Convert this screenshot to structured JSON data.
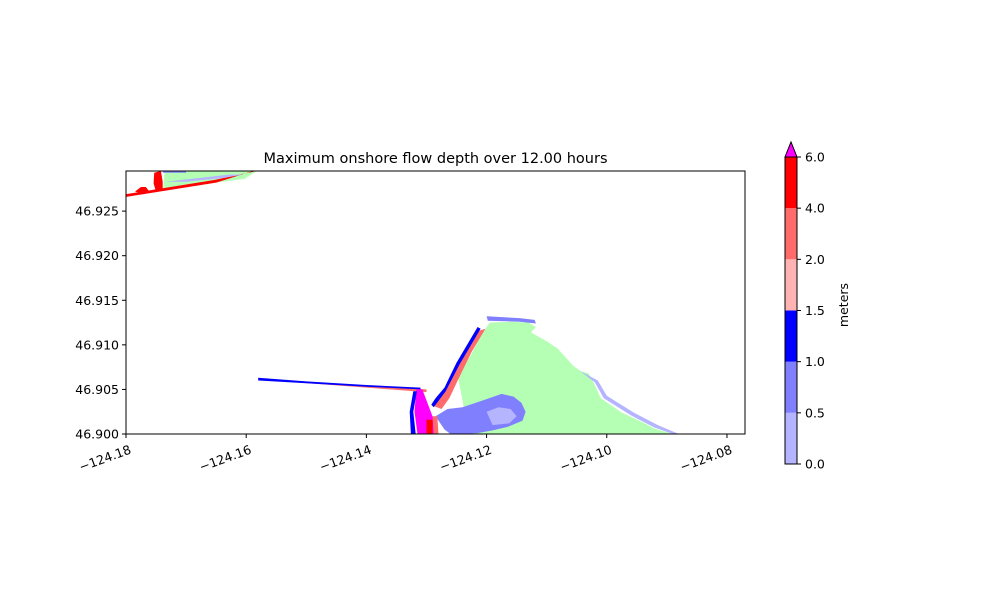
{
  "chart_data": {
    "type": "heatmap",
    "title": "Maximum onshore flow depth over 12.00 hours",
    "xlabel": "",
    "ylabel": "",
    "xlim": [
      -124.18,
      -124.077
    ],
    "ylim": [
      46.9,
      46.9295
    ],
    "x_ticks": [
      "−124.18",
      "−124.16",
      "−124.14",
      "−124.12",
      "−124.10",
      "−124.08"
    ],
    "x_tick_values": [
      -124.18,
      -124.16,
      -124.14,
      -124.12,
      -124.1,
      -124.08
    ],
    "y_ticks": [
      "46.900",
      "46.905",
      "46.910",
      "46.915",
      "46.920",
      "46.925"
    ],
    "y_tick_values": [
      46.9,
      46.905,
      46.91,
      46.915,
      46.92,
      46.925
    ],
    "grid": false,
    "colorbar": {
      "label": "meters",
      "levels": [
        0.0,
        0.5,
        1.0,
        1.5,
        2.0,
        4.0,
        6.0
      ],
      "tick_labels": [
        "0.0",
        "0.5",
        "1.0",
        "1.5",
        "2.0",
        "4.0",
        "6.0"
      ],
      "colors": [
        "#b4b4ff",
        "#8080ff",
        "#0000ff",
        "#ffb4b4",
        "#ff6a6a",
        "#ff0000"
      ],
      "over_color": "#ff00ff",
      "extend": "max"
    },
    "land_color": "#b4ffb4",
    "regions": [
      {
        "name": "north-beach-land",
        "fill": "#b4ffb4",
        "points": [
          [
            -124.1738,
            46.9275
          ],
          [
            -124.1736,
            46.9295
          ],
          [
            -124.1582,
            46.9295
          ],
          [
            -124.1603,
            46.9286
          ],
          [
            -124.1675,
            46.928
          ],
          [
            -124.1712,
            46.9278
          ]
        ]
      },
      {
        "name": "north-shoreline",
        "fill": "#ff0000",
        "points": [
          [
            -124.18,
            46.9266
          ],
          [
            -124.165,
            46.9282
          ],
          [
            -124.1584,
            46.9296
          ],
          [
            -124.1575,
            46.9296
          ],
          [
            -124.1652,
            46.9285
          ],
          [
            -124.18,
            46.9269
          ]
        ]
      },
      {
        "name": "north-red-plume",
        "fill": "#ff0000",
        "points": [
          [
            -124.175,
            46.9272
          ],
          [
            -124.1754,
            46.9281
          ],
          [
            -124.1753,
            46.9293
          ],
          [
            -124.1742,
            46.9295
          ],
          [
            -124.1739,
            46.9283
          ],
          [
            -124.1739,
            46.9274
          ]
        ]
      },
      {
        "name": "north-red-blob",
        "fill": "#ff0000",
        "points": [
          [
            -124.1785,
            46.9272
          ],
          [
            -124.1775,
            46.9277
          ],
          [
            -124.1767,
            46.9277
          ],
          [
            -124.1761,
            46.9272
          ],
          [
            -124.177,
            46.9269
          ]
        ]
      },
      {
        "name": "north-light-blue",
        "fill": "#b4b4ff",
        "points": [
          [
            -124.1735,
            46.9283
          ],
          [
            -124.168,
            46.9287
          ],
          [
            -124.163,
            46.9291
          ],
          [
            -124.1605,
            46.9291
          ],
          [
            -124.164,
            46.9287
          ],
          [
            -124.17,
            46.9283
          ]
        ]
      },
      {
        "name": "north-edge-blue",
        "fill": "#8080ff",
        "points": [
          [
            -124.174,
            46.9295
          ],
          [
            -124.17,
            46.9295
          ],
          [
            -124.17,
            46.9293
          ],
          [
            -124.1738,
            46.9293
          ]
        ]
      },
      {
        "name": "jetty-red",
        "fill": "#ff6a6a",
        "points": [
          [
            -124.158,
            46.9062
          ],
          [
            -124.13,
            46.905
          ],
          [
            -124.13,
            46.9047
          ],
          [
            -124.158,
            46.9061
          ]
        ]
      },
      {
        "name": "jetty-blue",
        "fill": "#0000ff",
        "points": [
          [
            -124.158,
            46.9063
          ],
          [
            -124.15,
            46.9059
          ],
          [
            -124.14,
            46.9055
          ],
          [
            -124.131,
            46.9052
          ],
          [
            -124.131,
            46.905
          ],
          [
            -124.14,
            46.9053
          ],
          [
            -124.15,
            46.9057
          ],
          [
            -124.158,
            46.906
          ]
        ]
      },
      {
        "name": "main-land",
        "fill": "#b4ffb4",
        "points": [
          [
            -124.1248,
            46.9065
          ],
          [
            -124.1225,
            46.909
          ],
          [
            -124.121,
            46.911
          ],
          [
            -124.1195,
            46.9125
          ],
          [
            -124.1155,
            46.9126
          ],
          [
            -124.113,
            46.9125
          ],
          [
            -124.1118,
            46.912
          ],
          [
            -124.1126,
            46.9114
          ],
          [
            -124.11,
            46.9104
          ],
          [
            -124.1082,
            46.9096
          ],
          [
            -124.1055,
            46.9076
          ],
          [
            -124.1042,
            46.907
          ],
          [
            -124.103,
            46.9068
          ],
          [
            -124.102,
            46.9055
          ],
          [
            -124.101,
            46.904
          ],
          [
            -124.0975,
            46.9024
          ],
          [
            -124.094,
            46.9013
          ],
          [
            -124.092,
            46.9006
          ],
          [
            -124.089,
            46.9
          ],
          [
            -124.122,
            46.9
          ],
          [
            -124.123,
            46.901
          ],
          [
            -124.1238,
            46.903
          ],
          [
            -124.1242,
            46.9045
          ]
        ]
      },
      {
        "name": "inland-area",
        "fill": "#8080ff",
        "points": [
          [
            -124.124,
            46.903
          ],
          [
            -124.1205,
            46.9038
          ],
          [
            -124.1175,
            46.9045
          ],
          [
            -124.1155,
            46.9042
          ],
          [
            -124.1142,
            46.9035
          ],
          [
            -124.1135,
            46.9025
          ],
          [
            -124.114,
            46.9015
          ],
          [
            -124.1165,
            46.9008
          ],
          [
            -124.119,
            46.9004
          ],
          [
            -124.1215,
            46.9001
          ],
          [
            -124.1238,
            46.9
          ],
          [
            -124.126,
            46.9
          ],
          [
            -124.127,
            46.9005
          ],
          [
            -124.1285,
            46.902
          ],
          [
            -124.1265,
            46.9028
          ]
        ]
      },
      {
        "name": "inland-area-light",
        "fill": "#b4b4ff",
        "points": [
          [
            -124.12,
            46.9025
          ],
          [
            -124.118,
            46.903
          ],
          [
            -124.116,
            46.9028
          ],
          [
            -124.115,
            46.902
          ],
          [
            -124.1162,
            46.9012
          ],
          [
            -124.119,
            46.901
          ]
        ]
      },
      {
        "name": "bay-shoreline-red",
        "fill": "#ff6a6a",
        "points": [
          [
            -124.1212,
            46.9116
          ],
          [
            -124.1245,
            46.908
          ],
          [
            -124.1265,
            46.9052
          ],
          [
            -124.128,
            46.904
          ],
          [
            -124.129,
            46.9032
          ],
          [
            -124.1275,
            46.9028
          ],
          [
            -124.1262,
            46.904
          ],
          [
            -124.1248,
            46.906
          ],
          [
            -124.1225,
            46.9092
          ],
          [
            -124.1202,
            46.9118
          ]
        ]
      },
      {
        "name": "bay-shoreline-blue",
        "fill": "#0000ff",
        "points": [
          [
            -124.1215,
            46.912
          ],
          [
            -124.125,
            46.908
          ],
          [
            -124.127,
            46.9052
          ],
          [
            -124.1285,
            46.904
          ],
          [
            -124.1292,
            46.9033
          ],
          [
            -124.1288,
            46.903
          ],
          [
            -124.1268,
            46.9048
          ],
          [
            -124.1245,
            46.9078
          ],
          [
            -124.121,
            46.9118
          ]
        ]
      },
      {
        "name": "north-spit-blue",
        "fill": "#8080ff",
        "points": [
          [
            -124.12,
            46.9132
          ],
          [
            -124.1145,
            46.913
          ],
          [
            -124.112,
            46.9128
          ],
          [
            -124.1118,
            46.9124
          ],
          [
            -124.1145,
            46.9126
          ],
          [
            -124.1198,
            46.9127
          ]
        ]
      },
      {
        "name": "east-shore-light",
        "fill": "#b4b4ff",
        "points": [
          [
            -124.1045,
            46.9071
          ],
          [
            -124.102,
            46.9058
          ],
          [
            -124.1005,
            46.904
          ],
          [
            -124.096,
            46.9021
          ],
          [
            -124.092,
            46.9007
          ],
          [
            -124.089,
            46.9
          ],
          [
            -124.088,
            46.9
          ],
          [
            -124.0915,
            46.901
          ],
          [
            -124.0955,
            46.9024
          ],
          [
            -124.1,
            46.9043
          ],
          [
            -124.1015,
            46.906
          ]
        ]
      },
      {
        "name": "channel-magenta",
        "fill": "#ff00ff",
        "points": [
          [
            -124.1317,
            46.905
          ],
          [
            -124.1307,
            46.905
          ],
          [
            -124.129,
            46.902
          ],
          [
            -124.128,
            46.9
          ],
          [
            -124.1315,
            46.9
          ],
          [
            -124.132,
            46.9025
          ]
        ]
      },
      {
        "name": "channel-blue",
        "fill": "#0000ff",
        "points": [
          [
            -124.1322,
            46.9048
          ],
          [
            -124.1316,
            46.9048
          ],
          [
            -124.1322,
            46.9025
          ],
          [
            -124.1318,
            46.9
          ],
          [
            -124.1326,
            46.9
          ],
          [
            -124.1328,
            46.9025
          ]
        ]
      },
      {
        "name": "channel-red",
        "fill": "#ff0000",
        "points": [
          [
            -124.13,
            46.9016
          ],
          [
            -124.129,
            46.9016
          ],
          [
            -124.129,
            46.9
          ],
          [
            -124.13,
            46.9
          ]
        ]
      },
      {
        "name": "channel-edge",
        "fill": "#ff6a6a",
        "points": [
          [
            -124.129,
            46.902
          ],
          [
            -124.1282,
            46.902
          ],
          [
            -124.128,
            46.9
          ],
          [
            -124.1288,
            46.9
          ]
        ]
      }
    ]
  }
}
